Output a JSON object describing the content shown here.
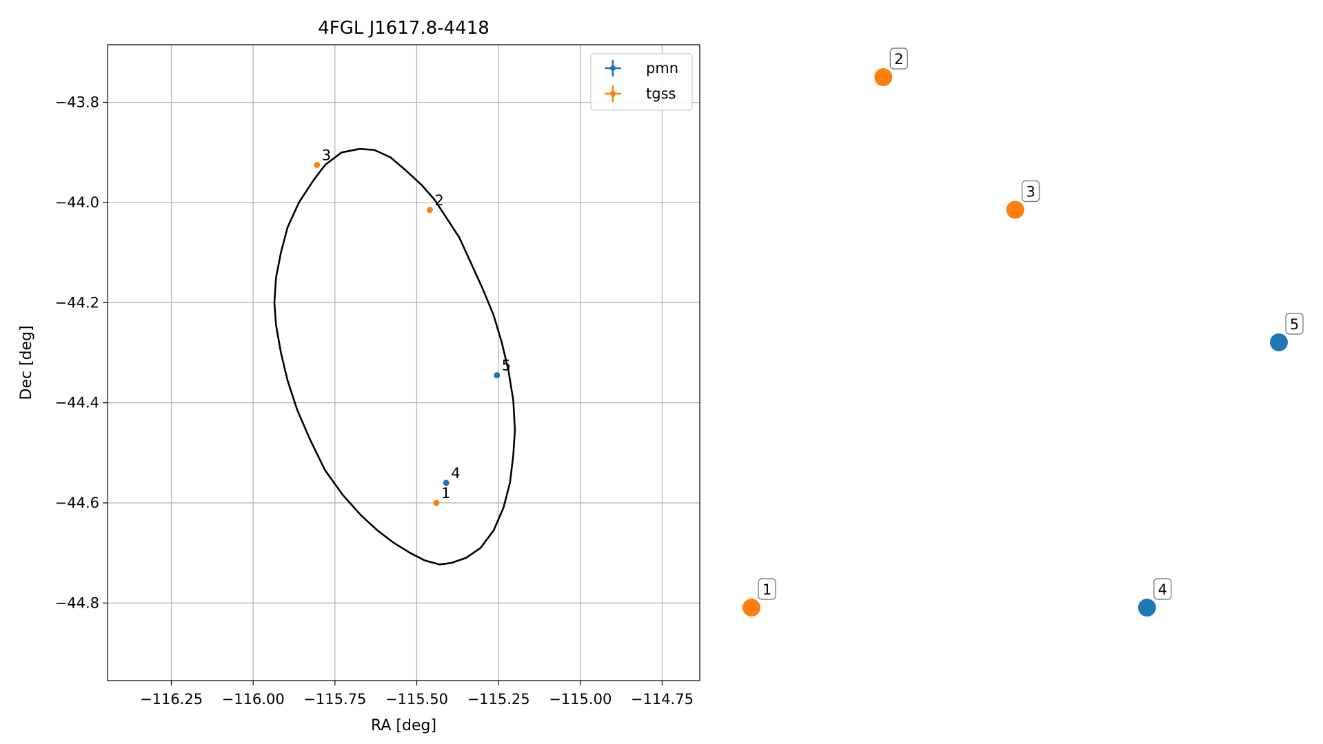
{
  "chart_data": [
    {
      "type": "scatter",
      "title": "4FGL J1617.8-4418",
      "xlabel": "RA [deg]",
      "ylabel": "Dec [deg]",
      "xlim": [
        -116.445,
        -114.635
      ],
      "ylim": [
        -44.955,
        -43.685
      ],
      "xticks": [
        -116.25,
        -116.0,
        -115.75,
        -115.5,
        -115.25,
        -115.0,
        -114.75
      ],
      "xtick_labels": [
        "−116.25",
        "−116.00",
        "−115.75",
        "−115.50",
        "−115.25",
        "−115.00",
        "−114.75"
      ],
      "yticks": [
        -43.8,
        -44.0,
        -44.2,
        -44.4,
        -44.6,
        -44.8
      ],
      "ytick_labels": [
        "−43.8",
        "−44.0",
        "−44.2",
        "−44.4",
        "−44.6",
        "−44.8"
      ],
      "grid": true,
      "legend_position": "top-right",
      "series": [
        {
          "name": "pmn",
          "color": "#1f77b4",
          "points": [
            {
              "label": "4",
              "x": -115.41,
              "y": -44.56
            },
            {
              "label": "5",
              "x": -115.255,
              "y": -44.345
            }
          ]
        },
        {
          "name": "tgss",
          "color": "#ff7f0e",
          "points": [
            {
              "label": "1",
              "x": -115.44,
              "y": -44.6
            },
            {
              "label": "2",
              "x": -115.46,
              "y": -44.015
            },
            {
              "label": "3",
              "x": -115.805,
              "y": -43.925
            }
          ]
        }
      ],
      "ellipse": {
        "color": "#000000",
        "points": [
          [
            -115.675,
            -43.893
          ],
          [
            -115.63,
            -43.895
          ],
          [
            -115.58,
            -43.91
          ],
          [
            -115.535,
            -43.935
          ],
          [
            -115.485,
            -43.965
          ],
          [
            -115.445,
            -43.995
          ],
          [
            -115.41,
            -44.03
          ],
          [
            -115.37,
            -44.07
          ],
          [
            -115.335,
            -44.12
          ],
          [
            -115.3,
            -44.17
          ],
          [
            -115.265,
            -44.225
          ],
          [
            -115.24,
            -44.28
          ],
          [
            -115.22,
            -44.335
          ],
          [
            -115.205,
            -44.395
          ],
          [
            -115.2,
            -44.455
          ],
          [
            -115.205,
            -44.505
          ],
          [
            -115.215,
            -44.56
          ],
          [
            -115.235,
            -44.61
          ],
          [
            -115.265,
            -44.655
          ],
          [
            -115.305,
            -44.69
          ],
          [
            -115.35,
            -44.71
          ],
          [
            -115.395,
            -44.72
          ],
          [
            -115.43,
            -44.723
          ],
          [
            -115.475,
            -44.715
          ],
          [
            -115.52,
            -44.7
          ],
          [
            -115.57,
            -44.68
          ],
          [
            -115.62,
            -44.655
          ],
          [
            -115.67,
            -44.625
          ],
          [
            -115.725,
            -44.585
          ],
          [
            -115.78,
            -44.535
          ],
          [
            -115.825,
            -44.475
          ],
          [
            -115.865,
            -44.415
          ],
          [
            -115.895,
            -44.355
          ],
          [
            -115.915,
            -44.3
          ],
          [
            -115.93,
            -44.245
          ],
          [
            -115.935,
            -44.2
          ],
          [
            -115.93,
            -44.15
          ],
          [
            -115.915,
            -44.1
          ],
          [
            -115.895,
            -44.05
          ],
          [
            -115.86,
            -44.0
          ],
          [
            -115.815,
            -43.955
          ],
          [
            -115.78,
            -43.925
          ],
          [
            -115.73,
            -43.9
          ],
          [
            -115.675,
            -43.893
          ]
        ]
      }
    },
    {
      "type": "scatter",
      "xlabel": "",
      "ylabel": "",
      "grid": false,
      "series": [
        {
          "name": "",
          "color": "#1f77b4",
          "points": [
            {
              "label": "4",
              "x": 4,
              "y": 1
            },
            {
              "label": "5",
              "x": 5,
              "y": 2
            }
          ]
        },
        {
          "name": "",
          "color": "#ff7f0e",
          "points": [
            {
              "label": "1",
              "x": 1,
              "y": 1
            },
            {
              "label": "2",
              "x": 2,
              "y": 3
            },
            {
              "label": "3",
              "x": 3,
              "y": 2.5
            }
          ]
        }
      ]
    }
  ]
}
